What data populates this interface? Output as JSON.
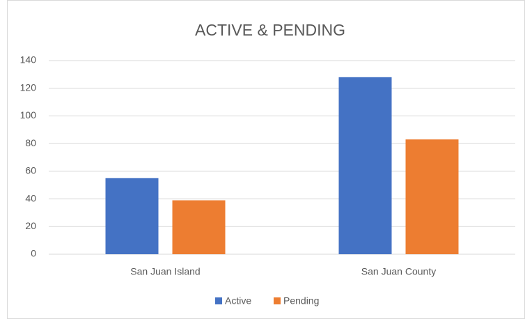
{
  "chart_data": {
    "type": "bar",
    "title": "ACTIVE & PENDING",
    "categories": [
      "San Juan Island",
      "San Juan County"
    ],
    "series": [
      {
        "name": "Active",
        "color": "#4472c4",
        "values": [
          55,
          128
        ]
      },
      {
        "name": "Pending",
        "color": "#ed7d31",
        "values": [
          39,
          83
        ]
      }
    ],
    "ylim": [
      0,
      140
    ],
    "yticks": [
      0,
      20,
      40,
      60,
      80,
      100,
      120,
      140
    ],
    "grid": true,
    "legend": "bottom"
  }
}
